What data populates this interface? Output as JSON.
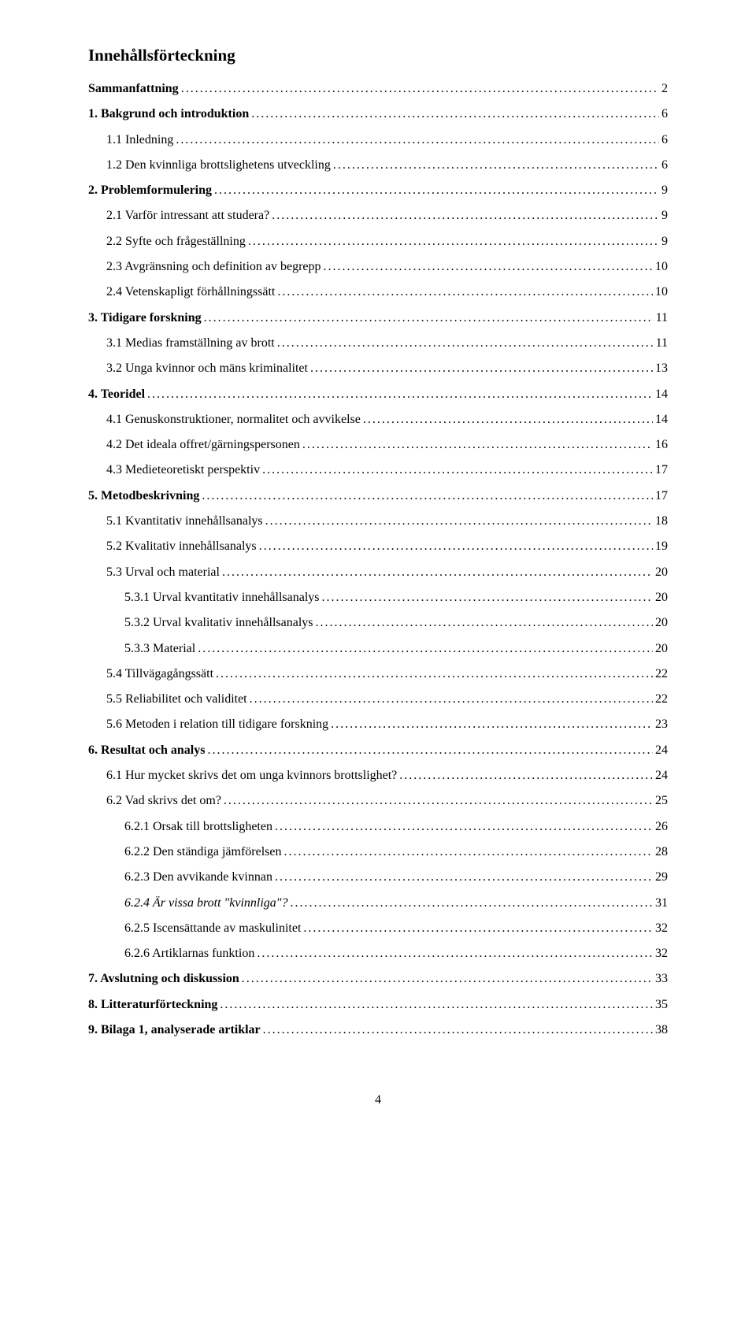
{
  "title": "Innehållsförteckning",
  "page_number": "4",
  "toc": [
    {
      "label": "Sammanfattning",
      "page": "2",
      "level": 0,
      "bold": true,
      "italic": false
    },
    {
      "label": "1. Bakgrund och introduktion",
      "page": "6",
      "level": 0,
      "bold": true,
      "italic": false
    },
    {
      "label": "1.1 Inledning",
      "page": "6",
      "level": 1,
      "bold": false,
      "italic": false
    },
    {
      "label": "1.2 Den kvinnliga brottslighetens utveckling",
      "page": "6",
      "level": 1,
      "bold": false,
      "italic": false
    },
    {
      "label": "2. Problemformulering",
      "page": "9",
      "level": 0,
      "bold": true,
      "italic": false
    },
    {
      "label": "2.1 Varför intressant att studera?",
      "page": "9",
      "level": 1,
      "bold": false,
      "italic": false
    },
    {
      "label": "2.2 Syfte och frågeställning",
      "page": "9",
      "level": 1,
      "bold": false,
      "italic": false
    },
    {
      "label": "2.3 Avgränsning och definition av begrepp",
      "page": "10",
      "level": 1,
      "bold": false,
      "italic": false
    },
    {
      "label": "2.4 Vetenskapligt förhållningssätt",
      "page": "10",
      "level": 1,
      "bold": false,
      "italic": false
    },
    {
      "label": "3. Tidigare forskning",
      "page": "11",
      "level": 0,
      "bold": true,
      "italic": false
    },
    {
      "label": "3.1 Medias framställning av brott",
      "page": "11",
      "level": 1,
      "bold": false,
      "italic": false
    },
    {
      "label": "3.2 Unga kvinnor och mäns kriminalitet",
      "page": "13",
      "level": 1,
      "bold": false,
      "italic": false
    },
    {
      "label": "4. Teoridel",
      "page": "14",
      "level": 0,
      "bold": true,
      "italic": false
    },
    {
      "label": "4.1 Genuskonstruktioner, normalitet och avvikelse",
      "page": "14",
      "level": 1,
      "bold": false,
      "italic": false
    },
    {
      "label": "4.2 Det ideala offret/gärningspersonen",
      "page": "16",
      "level": 1,
      "bold": false,
      "italic": false
    },
    {
      "label": "4.3 Medieteoretiskt perspektiv",
      "page": "17",
      "level": 1,
      "bold": false,
      "italic": false
    },
    {
      "label": "5. Metodbeskrivning",
      "page": "17",
      "level": 0,
      "bold": true,
      "italic": false
    },
    {
      "label": "5.1 Kvantitativ innehållsanalys",
      "page": "18",
      "level": 1,
      "bold": false,
      "italic": false
    },
    {
      "label": "5.2 Kvalitativ innehållsanalys",
      "page": "19",
      "level": 1,
      "bold": false,
      "italic": false
    },
    {
      "label": "5.3 Urval och material",
      "page": "20",
      "level": 1,
      "bold": false,
      "italic": false
    },
    {
      "label": "5.3.1 Urval kvantitativ innehållsanalys",
      "page": "20",
      "level": 2,
      "bold": false,
      "italic": false
    },
    {
      "label": "5.3.2 Urval kvalitativ innehållsanalys",
      "page": "20",
      "level": 2,
      "bold": false,
      "italic": false
    },
    {
      "label": "5.3.3 Material",
      "page": "20",
      "level": 2,
      "bold": false,
      "italic": false
    },
    {
      "label": "5.4 Tillvägagångssätt",
      "page": "22",
      "level": 1,
      "bold": false,
      "italic": false
    },
    {
      "label": "5.5 Reliabilitet och validitet",
      "page": "22",
      "level": 1,
      "bold": false,
      "italic": false
    },
    {
      "label": "5.6 Metoden i relation till tidigare forskning",
      "page": "23",
      "level": 1,
      "bold": false,
      "italic": false
    },
    {
      "label": "6. Resultat och analys",
      "page": "24",
      "level": 0,
      "bold": true,
      "italic": false
    },
    {
      "label": "6.1 Hur mycket skrivs det om unga kvinnors brottslighet?",
      "page": "24",
      "level": 1,
      "bold": false,
      "italic": false
    },
    {
      "label": "6.2 Vad skrivs det om?",
      "page": "25",
      "level": 1,
      "bold": false,
      "italic": false
    },
    {
      "label": "6.2.1 Orsak till brottsligheten",
      "page": "26",
      "level": 2,
      "bold": false,
      "italic": false
    },
    {
      "label": "6.2.2 Den ständiga jämförelsen",
      "page": "28",
      "level": 2,
      "bold": false,
      "italic": false
    },
    {
      "label": "6.2.3 Den avvikande kvinnan",
      "page": "29",
      "level": 2,
      "bold": false,
      "italic": false
    },
    {
      "label": "6.2.4 Är vissa brott \"kvinnliga\"?",
      "page": "31",
      "level": 2,
      "bold": false,
      "italic": true
    },
    {
      "label": "6.2.5 Iscensättande av maskulinitet",
      "page": "32",
      "level": 2,
      "bold": false,
      "italic": false
    },
    {
      "label": "6.2.6 Artiklarnas funktion",
      "page": "32",
      "level": 2,
      "bold": false,
      "italic": false
    },
    {
      "label": "7. Avslutning och diskussion",
      "page": "33",
      "level": 0,
      "bold": true,
      "italic": false
    },
    {
      "label": "8. Litteraturförteckning",
      "page": "35",
      "level": 0,
      "bold": true,
      "italic": false
    },
    {
      "label": "9. Bilaga 1, analyserade artiklar",
      "page": "38",
      "level": 0,
      "bold": true,
      "italic": false
    }
  ]
}
